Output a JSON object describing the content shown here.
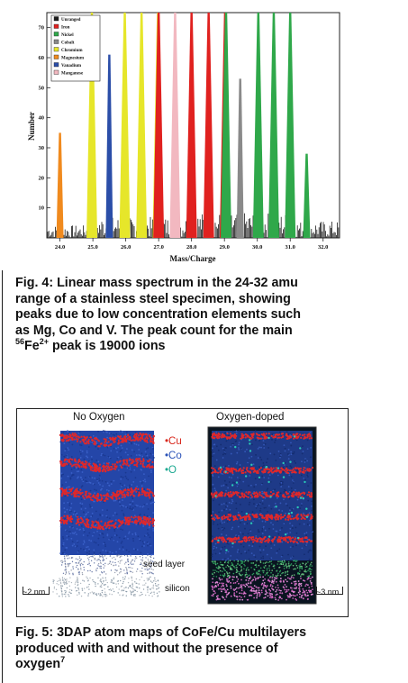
{
  "figure4": {
    "chart_data": {
      "type": "bar",
      "title": "",
      "xlabel": "Mass/Charge",
      "ylabel": "Number",
      "xlim": [
        23.6,
        32.5
      ],
      "ylim": [
        0,
        75
      ],
      "x_ticks": [
        "24.0",
        "25.0",
        "26.0",
        "27.0",
        "28.0",
        "29.0",
        "30.0",
        "31.0",
        "32.0"
      ],
      "y_ticks": [
        "10",
        "20",
        "30",
        "40",
        "50",
        "60",
        "70"
      ],
      "legend": {
        "position": "top-left",
        "entries": [
          {
            "name": "Unranged",
            "color": "#1a1a1a"
          },
          {
            "name": "Iron",
            "color": "#e0211f"
          },
          {
            "name": "Nickel",
            "color": "#2fa84a"
          },
          {
            "name": "Cobalt",
            "color": "#8a8a8a"
          },
          {
            "name": "Chromium",
            "color": "#e6e62a"
          },
          {
            "name": "Magnesium",
            "color": "#f08a1e"
          },
          {
            "name": "Vanadium",
            "color": "#2b4ea8"
          },
          {
            "name": "Manganese",
            "color": "#f2b8c0"
          }
        ]
      },
      "series": [
        {
          "name": "Magnesium",
          "color": "#f08a1e",
          "peaks": [
            {
              "x": 24.0,
              "y": 35
            }
          ]
        },
        {
          "name": "Vanadium",
          "color": "#2b4ea8",
          "peaks": [
            {
              "x": 25.5,
              "y": 61
            }
          ]
        },
        {
          "name": "Chromium",
          "color": "#e6e62a",
          "peaks": [
            {
              "x": 24.97,
              "y": 75
            },
            {
              "x": 25.97,
              "y": 75
            },
            {
              "x": 26.48,
              "y": 75
            },
            {
              "x": 26.98,
              "y": 75
            }
          ]
        },
        {
          "name": "Iron",
          "color": "#e0211f",
          "peaks": [
            {
              "x": 27.0,
              "y": 75
            },
            {
              "x": 28.0,
              "y": 75
            },
            {
              "x": 28.52,
              "y": 75
            },
            {
              "x": 29.02,
              "y": 75
            }
          ]
        },
        {
          "name": "Manganese",
          "color": "#f2b8c0",
          "peaks": [
            {
              "x": 27.5,
              "y": 75
            }
          ]
        },
        {
          "name": "Nickel",
          "color": "#2fa84a",
          "peaks": [
            {
              "x": 29.05,
              "y": 75
            },
            {
              "x": 30.03,
              "y": 75
            },
            {
              "x": 30.5,
              "y": 75
            },
            {
              "x": 31.0,
              "y": 75
            },
            {
              "x": 31.5,
              "y": 28
            }
          ]
        },
        {
          "name": "Cobalt",
          "color": "#8a8a8a",
          "peaks": [
            {
              "x": 29.48,
              "y": 53
            }
          ]
        }
      ]
    },
    "caption": {
      "line1": "Fig. 4: Linear mass spectrum in the 24-32 amu",
      "line2": "range of a stainless steel specimen, showing",
      "line3": "peaks due to low concentration elements such",
      "line4": "as Mg, Co and V. The peak count for the main",
      "line5_sup": "56",
      "line5_mid": "Fe",
      "line5_sup2": "2+",
      "line5_end": " peak is 19000 ions"
    }
  },
  "figure5": {
    "label_left": "No Oxygen",
    "label_right": "Oxygen-doped",
    "legend": [
      {
        "text": "•Cu",
        "color": "#d8261b"
      },
      {
        "text": "•Co",
        "color": "#2a52b8"
      },
      {
        "text": "•O",
        "color": "#1aa890"
      }
    ],
    "seed_layer_label": "seed layer",
    "silicon_label": "silicon",
    "scale_left": "~2 nm",
    "scale_right": "~3 nm",
    "caption": {
      "line1": "Fig. 5: 3DAP atom maps of CoFe/Cu multilayers",
      "line2": "produced with and without the presence of",
      "line3": "oxygen",
      "line3_sup": "7"
    }
  }
}
